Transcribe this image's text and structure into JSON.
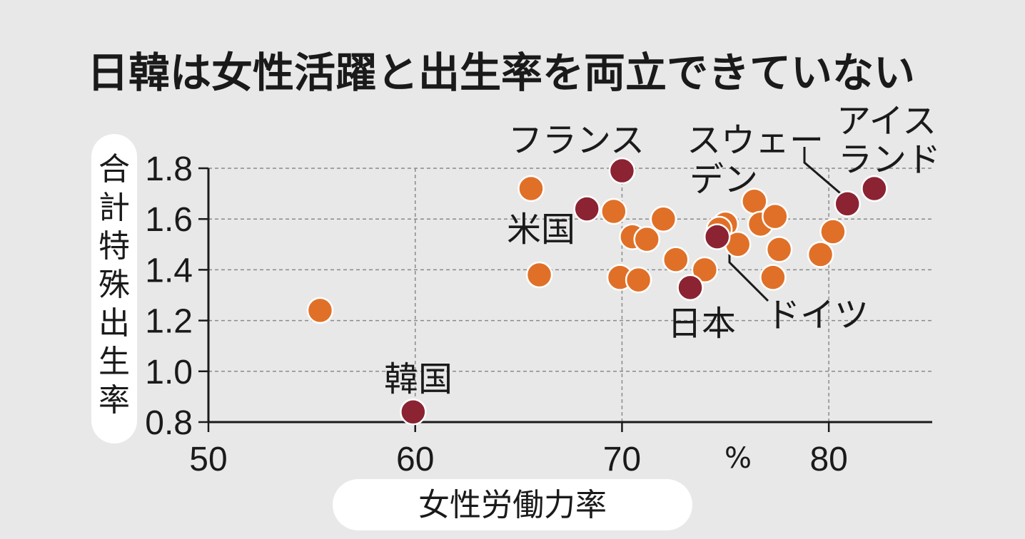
{
  "chart_data": {
    "type": "scatter",
    "title": "日韓は女性活躍と出生率を両立できていない",
    "xlabel": "女性労働力率",
    "ylabel": "合計特殊出生率",
    "x_unit": "%",
    "xlim": [
      50,
      85
    ],
    "ylim": [
      0.8,
      1.8
    ],
    "x_ticks": [
      "50",
      "60",
      "70",
      "80"
    ],
    "y_ticks": [
      "0.8",
      "1.0",
      "1.2",
      "1.4",
      "1.6",
      "1.8"
    ],
    "grid": true,
    "colors": {
      "highlight": "#8b2332",
      "other": "#e07028",
      "background": "#e8e8e8"
    },
    "points": [
      {
        "x": 55.4,
        "y": 1.24,
        "group": "other"
      },
      {
        "x": 65.6,
        "y": 1.72,
        "group": "other"
      },
      {
        "x": 66.0,
        "y": 1.38,
        "group": "other"
      },
      {
        "x": 69.6,
        "y": 1.63,
        "group": "other"
      },
      {
        "x": 70.5,
        "y": 1.53,
        "group": "other"
      },
      {
        "x": 71.2,
        "y": 1.52,
        "group": "other"
      },
      {
        "x": 69.9,
        "y": 1.37,
        "group": "other"
      },
      {
        "x": 70.8,
        "y": 1.36,
        "group": "other"
      },
      {
        "x": 72.0,
        "y": 1.6,
        "group": "other"
      },
      {
        "x": 72.6,
        "y": 1.44,
        "group": "other"
      },
      {
        "x": 74.0,
        "y": 1.4,
        "group": "other"
      },
      {
        "x": 75.0,
        "y": 1.58,
        "group": "other"
      },
      {
        "x": 74.7,
        "y": 1.56,
        "group": "other"
      },
      {
        "x": 75.6,
        "y": 1.5,
        "group": "other"
      },
      {
        "x": 76.4,
        "y": 1.67,
        "group": "other"
      },
      {
        "x": 76.7,
        "y": 1.58,
        "group": "other"
      },
      {
        "x": 77.4,
        "y": 1.61,
        "group": "other"
      },
      {
        "x": 77.6,
        "y": 1.48,
        "group": "other"
      },
      {
        "x": 77.3,
        "y": 1.37,
        "group": "other"
      },
      {
        "x": 79.6,
        "y": 1.46,
        "group": "other"
      },
      {
        "x": 80.2,
        "y": 1.55,
        "group": "other"
      },
      {
        "x": 70.0,
        "y": 1.79,
        "group": "highlight",
        "label": "フランス"
      },
      {
        "x": 68.3,
        "y": 1.64,
        "group": "highlight",
        "label": "米国"
      },
      {
        "x": 73.3,
        "y": 1.33,
        "group": "highlight",
        "label": "日本"
      },
      {
        "x": 74.6,
        "y": 1.53,
        "group": "highlight",
        "label": "ドイツ"
      },
      {
        "x": 80.9,
        "y": 1.66,
        "group": "highlight",
        "label": "スウェーデン"
      },
      {
        "x": 82.2,
        "y": 1.72,
        "group": "highlight",
        "label": "アイスランド"
      },
      {
        "x": 59.9,
        "y": 0.84,
        "group": "highlight",
        "label": "韓国"
      }
    ],
    "annotations": {
      "france": "フランス",
      "usa": "米国",
      "japan": "日本",
      "germany": "ドイツ",
      "korea": "韓国",
      "sweden_1": "スウェー",
      "sweden_2": "デン",
      "iceland_1": "アイス",
      "iceland_2": "ランド"
    }
  }
}
